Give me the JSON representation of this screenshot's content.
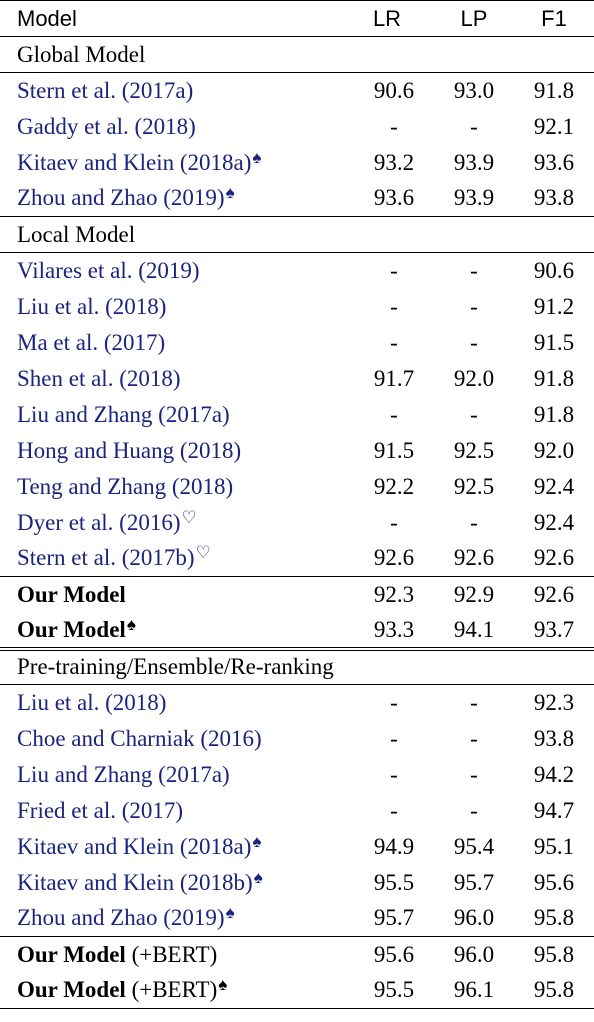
{
  "header": {
    "model": "Model",
    "lr": "LR",
    "lp": "LP",
    "f1": "F1"
  },
  "sections": [
    {
      "title": "Global Model",
      "rows": [
        {
          "model": "Stern et al. (2017a)",
          "sym": "",
          "lr": "90.6",
          "lp": "93.0",
          "f1": "91.8",
          "bold": []
        },
        {
          "model": "Gaddy et al. (2018)",
          "sym": "",
          "lr": "-",
          "lp": "-",
          "f1": "92.1",
          "bold": []
        },
        {
          "model": "Kitaev and Klein (2018a)",
          "sym": "♠",
          "lr": "93.2",
          "lp": "93.9",
          "f1": "93.6",
          "bold": [
            "lp"
          ]
        },
        {
          "model": "Zhou and Zhao (2019)",
          "sym": "♠",
          "lr": "93.6",
          "lp": "93.9",
          "f1": "93.8",
          "bold": [
            "lr",
            "lp",
            "f1"
          ]
        }
      ]
    },
    {
      "title": "Local Model",
      "rows": [
        {
          "model": "Vilares et al. (2019)",
          "sym": "",
          "lr": "-",
          "lp": "-",
          "f1": "90.6",
          "bold": []
        },
        {
          "model": "Liu et al. (2018)",
          "sym": "",
          "lr": "-",
          "lp": "-",
          "f1": "91.2",
          "bold": []
        },
        {
          "model": "Ma et al. (2017)",
          "sym": "",
          "lr": "-",
          "lp": "-",
          "f1": "91.5",
          "bold": []
        },
        {
          "model": "Shen et al. (2018)",
          "sym": "",
          "lr": "91.7",
          "lp": "92.0",
          "f1": "91.8",
          "bold": []
        },
        {
          "model": "Liu and Zhang (2017a)",
          "sym": "",
          "lr": "-",
          "lp": "-",
          "f1": "91.8",
          "bold": []
        },
        {
          "model": "Hong and Huang (2018)",
          "sym": "",
          "lr": "91.5",
          "lp": "92.5",
          "f1": "92.0",
          "bold": []
        },
        {
          "model": "Teng and Zhang (2018)",
          "sym": "",
          "lr": "92.2",
          "lp": "92.5",
          "f1": "92.4",
          "bold": []
        },
        {
          "model": "Dyer et al. (2016)",
          "sym": "♡",
          "lr": "-",
          "lp": "-",
          "f1": "92.4",
          "bold": []
        },
        {
          "model": "Stern et al. (2017b)",
          "sym": "♡",
          "lr": "92.6",
          "lp": "92.6",
          "f1": "92.6",
          "bold": []
        }
      ]
    }
  ],
  "ours_1": [
    {
      "model": "Our Model",
      "suffix": "",
      "sym": "",
      "lr": "92.3",
      "lp": "92.9",
      "f1": "92.6",
      "bold": []
    },
    {
      "model": "Our Model",
      "suffix": "",
      "sym": "♠",
      "lr": "93.3",
      "lp": "94.1",
      "f1": "93.7",
      "bold": [
        "lr",
        "lp",
        "f1"
      ]
    }
  ],
  "section_3": {
    "title": "Pre-training/Ensemble/Re-ranking",
    "rows": [
      {
        "model": "Liu et al. (2018)",
        "sym": "",
        "lr": "-",
        "lp": "-",
        "f1": "92.3",
        "bold": []
      },
      {
        "model": "Choe and Charniak (2016)",
        "sym": "",
        "lr": "-",
        "lp": "-",
        "f1": "93.8",
        "bold": []
      },
      {
        "model": "Liu and Zhang (2017a)",
        "sym": "",
        "lr": "-",
        "lp": "-",
        "f1": "94.2",
        "bold": []
      },
      {
        "model": "Fried et al. (2017)",
        "sym": "",
        "lr": "-",
        "lp": "-",
        "f1": "94.7",
        "bold": []
      },
      {
        "model": "Kitaev and Klein (2018a)",
        "sym": "♠",
        "lr": "94.9",
        "lp": "95.4",
        "f1": "95.1",
        "bold": []
      },
      {
        "model": "Kitaev and Klein (2018b)",
        "sym": "♠",
        "lr": "95.5",
        "lp": "95.7",
        "f1": "95.6",
        "bold": []
      },
      {
        "model": "Zhou and Zhao (2019)",
        "sym": "♠",
        "lr": "95.7",
        "lp": "96.0",
        "f1": "95.8",
        "bold": [
          "lr",
          "f1"
        ]
      }
    ]
  },
  "ours_2": [
    {
      "model": "Our Model",
      "suffix": " (+BERT)",
      "sym": "",
      "lr": "95.6",
      "lp": "96.0",
      "f1": "95.8",
      "bold": [
        "f1"
      ]
    },
    {
      "model": "Our Model",
      "suffix": " (+BERT)",
      "sym": "♠",
      "lr": "95.5",
      "lp": "96.1",
      "f1": "95.8",
      "bold": [
        "lp",
        "f1"
      ]
    }
  ]
}
